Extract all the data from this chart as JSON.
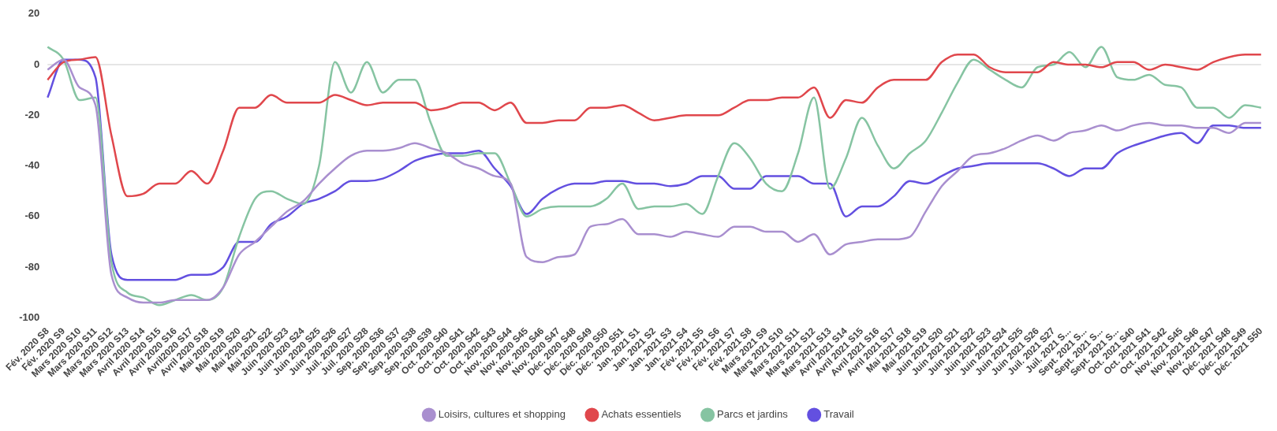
{
  "chart_data": {
    "type": "line",
    "categories": [
      "Fév. 2020 S8",
      "Fév. 2020 S9",
      "Mars 2020 S10",
      "Mars 2020 S11",
      "Mars 2020 S12",
      "Mars 2020 S13",
      "Avril 2020 S14",
      "Avril 2020 S15",
      "Avril 2020 S16",
      "Avril2020 S17",
      "Avril 2020 S18",
      "Mai 2020 S19",
      "Mai 2020 S20",
      "Mai 2020 S21",
      "Mai 2020 S22",
      "Juin 2020 S23",
      "Juin 2020 S24",
      "Juin 2020 S25",
      "Juin 2020 S26",
      "Juil. 2020 S27",
      "Juil. 2020 S28",
      "Sep. 2020 S36",
      "Sep. 2020 S37",
      "Sep. 2020 S38",
      "Sep. 2020 S39",
      "Oct. 2020 S40",
      "Oct. 2020 S41",
      "Oct. 2020 S42",
      "Oct. 2020 S43",
      "Nov. 2020 S44",
      "Nov. 2020 S45",
      "Nov. 2020 S46",
      "Nov. 2020 S47",
      "Déc. 2020 S48",
      "Déc. 2020 S49",
      "Déc. 2020 S50",
      "Déc. 2020 S51",
      "Jan. 2021 S1",
      "Jan. 2021 S2",
      "Jan. 2021 S3",
      "Jan. 2021 S4",
      "Fév. 2021 S5",
      "Fév. 2021 S6",
      "Fév. 2021 S7",
      "Fév. 2021 S8",
      "Mars 2021 S9",
      "Mars 2021 S10",
      "Mars 2021 S11",
      "Mars 2021 S12",
      "Mars 2021 S13",
      "Avril 2021 S14",
      "Avril 2021 S15",
      "Avril 2021 S16",
      "Avril 2021 S17",
      "Mai 2021 S18",
      "Mai 2021 S19",
      "Juin 2021 S20",
      "Juin 2021 S21",
      "Juin 2021 S22",
      "Juin 2021 S23",
      "Juin 2021 S24",
      "Juin 2021 S25",
      "Juin 2021 S26",
      "Juil. 2021 S27",
      "Juil. 2021 S...",
      "Sept. 2021 S...",
      "Sept. 2021 S...",
      "Sept. 2021 S...",
      "Oct. 2021 S40",
      "Oct. 2021 S41",
      "Oct. 2021 S42",
      "Nov. 2021 S45",
      "Nov. 2021 S46",
      "Nov. 2021 S47",
      "Déc. 2021 S48",
      "Déc. 2021 S49",
      "Déc. 2021 S50"
    ],
    "series": [
      {
        "name": "Loisirs, cultures et shopping",
        "color": "#a98fcf",
        "values": [
          -2,
          2,
          -9,
          -16,
          -83,
          -92,
          -94,
          -94,
          -93,
          -93,
          -93,
          -88,
          -75,
          -70,
          -64,
          -58,
          -54,
          -47,
          -41,
          -36,
          -34,
          -34,
          -33,
          -31,
          -33,
          -35,
          -39,
          -41,
          -44,
          -47,
          -76,
          -78,
          -76,
          -75,
          -64,
          -63,
          -61,
          -67,
          -67,
          -68,
          -66,
          -67,
          -68,
          -64,
          -64,
          -66,
          -66,
          -70,
          -67,
          -75,
          -71,
          -70,
          -69,
          -69,
          -68,
          -58,
          -48,
          -42,
          -36,
          -35,
          -33,
          -30,
          -28,
          -30,
          -27,
          -26,
          -24,
          -26,
          -24,
          -23,
          -24,
          -24,
          -25,
          -25,
          -27,
          -23,
          -23
        ]
      },
      {
        "name": "Achats essentiels",
        "color": "#e0474c",
        "values": [
          -6,
          1,
          2,
          3,
          -28,
          -52,
          -51,
          -47,
          -47,
          -42,
          -47,
          -34,
          -17,
          -17,
          -12,
          -15,
          -15,
          -15,
          -12,
          -14,
          -16,
          -15,
          -15,
          -15,
          -18,
          -17,
          -15,
          -15,
          -18,
          -15,
          -23,
          -23,
          -22,
          -22,
          -17,
          -17,
          -16,
          -19,
          -22,
          -21,
          -20,
          -20,
          -20,
          -17,
          -14,
          -14,
          -13,
          -13,
          -9,
          -21,
          -14,
          -15,
          -9,
          -6,
          -6,
          -6,
          1,
          4,
          4,
          -1,
          -3,
          -3,
          -3,
          1,
          0,
          0,
          -1,
          1,
          1,
          -2,
          0,
          -1,
          -2,
          1,
          3,
          4,
          4
        ]
      },
      {
        "name": "Parcs et jardins",
        "color": "#86c4a2",
        "values": [
          7,
          2,
          -14,
          -13,
          -78,
          -90,
          -92,
          -95,
          -93,
          -91,
          -93,
          -88,
          -68,
          -53,
          -50,
          -53,
          -55,
          -40,
          1,
          -11,
          1,
          -11,
          -6,
          -6,
          -23,
          -36,
          -36,
          -35,
          -35,
          -47,
          -60,
          -57,
          -56,
          -56,
          -56,
          -53,
          -47,
          -57,
          -56,
          -56,
          -55,
          -59,
          -44,
          -31,
          -37,
          -47,
          -50,
          -35,
          -13,
          -49,
          -37,
          -21,
          -32,
          -41,
          -35,
          -30,
          -19,
          -7,
          2,
          -2,
          -6,
          -9,
          -1,
          0,
          5,
          -1,
          7,
          -5,
          -6,
          -4,
          -8,
          -9,
          -17,
          -17,
          -21,
          -16,
          -17
        ]
      },
      {
        "name": "Travail",
        "color": "#6350e0",
        "values": [
          -13,
          2,
          2,
          -5,
          -75,
          -85,
          -85,
          -85,
          -85,
          -83,
          -83,
          -80,
          -70,
          -70,
          -63,
          -60,
          -55,
          -53,
          -50,
          -46,
          -46,
          -45,
          -42,
          -38,
          -36,
          -35,
          -35,
          -34,
          -41,
          -48,
          -59,
          -53,
          -49,
          -47,
          -47,
          -46,
          -46,
          -47,
          -47,
          -48,
          -47,
          -44,
          -44,
          -49,
          -49,
          -44,
          -44,
          -44,
          -47,
          -47,
          -60,
          -56,
          -56,
          -52,
          -46,
          -47,
          -44,
          -41,
          -40,
          -39,
          -39,
          -39,
          -39,
          -41,
          -44,
          -41,
          -41,
          -35,
          -32,
          -30,
          -28,
          -27,
          -31,
          -24,
          -24,
          -25,
          -25
        ]
      }
    ],
    "ylim": [
      -100,
      20
    ],
    "yticks": [
      -100,
      -80,
      -60,
      -40,
      -20,
      0,
      20
    ],
    "grid": false,
    "legend": "bottom",
    "ref_lines": [
      {
        "axis": "y",
        "value": 0,
        "color": "#dddddd"
      }
    ]
  }
}
